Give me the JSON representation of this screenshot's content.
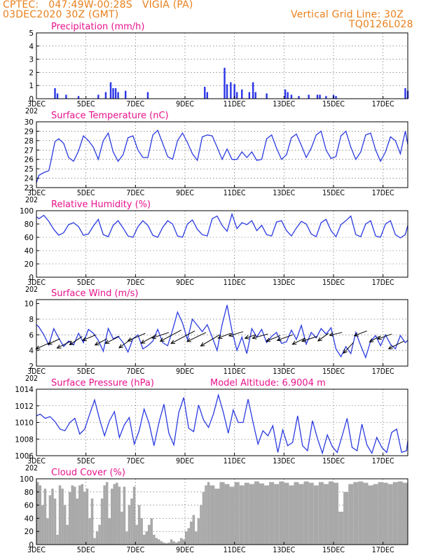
{
  "header": {
    "line1": "CPTEC:   047:49W-00:28S   VIGIA (PA)",
    "line2": "03DEC2020 30Z (GMT)",
    "right1": "Vertical Grid Line: 30Z",
    "right2": "TQ0126L028"
  },
  "x_ticks": [
    "3DEC",
    "5DEC",
    "7DEC",
    "9DEC",
    "11DEC",
    "13DEC",
    "15DEC",
    "17DEC"
  ],
  "x_tick_days": [
    3,
    5,
    7,
    9,
    11,
    13,
    15,
    17
  ],
  "year_label": "202",
  "colors": {
    "line": "#2b3be0",
    "bar": "#2a35e6",
    "cloud": "#a9a9a9",
    "title": "#e8128c",
    "header": "#e8801c"
  },
  "chart_data": [
    {
      "id": "precip",
      "type": "bar",
      "title": "Precipitation (mm/h)",
      "ylim": [
        0,
        5
      ],
      "yticks": [
        0,
        1,
        2,
        3,
        4,
        5
      ],
      "x": [
        3.75,
        3.85,
        4.2,
        4.7,
        5.5,
        5.8,
        6.0,
        6.1,
        6.2,
        6.3,
        6.6,
        7.5,
        9.8,
        9.9,
        10.6,
        10.7,
        10.85,
        11.0,
        11.1,
        11.3,
        11.6,
        11.75,
        11.85,
        12.3,
        13.05,
        13.15,
        13.3,
        13.6,
        14.0,
        14.35,
        14.45,
        14.7,
        15.0,
        15.1,
        17.9,
        18.0
      ],
      "values": [
        0.8,
        0.4,
        0.3,
        0.2,
        0.3,
        0.5,
        1.25,
        0.8,
        0.8,
        0.5,
        0.6,
        0.5,
        0.9,
        0.5,
        2.35,
        1.1,
        1.25,
        1.1,
        0.5,
        0.7,
        0.5,
        1.25,
        0.5,
        0.4,
        0.7,
        0.5,
        0.3,
        0.2,
        0.3,
        0.3,
        0.3,
        0.2,
        0.3,
        0.2,
        0.8,
        0.6
      ]
    },
    {
      "id": "temp",
      "type": "line",
      "title": "Surface Temperature (nC)",
      "ylim": [
        23,
        30
      ],
      "yticks": [
        23,
        24,
        25,
        26,
        27,
        28,
        29,
        30
      ],
      "x": [
        3.0,
        3.1,
        3.3,
        3.5,
        3.6,
        3.75,
        3.9,
        4.1,
        4.3,
        4.5,
        4.7,
        4.9,
        5.1,
        5.3,
        5.5,
        5.7,
        5.9,
        6.1,
        6.3,
        6.5,
        6.7,
        6.9,
        7.1,
        7.3,
        7.5,
        7.7,
        7.9,
        8.1,
        8.3,
        8.5,
        8.7,
        8.9,
        9.1,
        9.3,
        9.5,
        9.7,
        9.9,
        10.1,
        10.3,
        10.5,
        10.7,
        10.9,
        11.1,
        11.3,
        11.5,
        11.7,
        11.9,
        12.1,
        12.3,
        12.5,
        12.7,
        12.9,
        13.1,
        13.3,
        13.5,
        13.7,
        13.9,
        14.1,
        14.3,
        14.5,
        14.7,
        14.9,
        15.1,
        15.3,
        15.5,
        15.7,
        15.9,
        16.1,
        16.3,
        16.5,
        16.7,
        16.9,
        17.1,
        17.3,
        17.5,
        17.7,
        17.9,
        18.0
      ],
      "values": [
        23.5,
        24.3,
        24.6,
        24.8,
        26.0,
        27.9,
        28.2,
        27.7,
        26.2,
        25.8,
        26.9,
        28.5,
        28.0,
        27.3,
        26.0,
        28.0,
        28.8,
        26.8,
        25.8,
        26.5,
        28.3,
        28.5,
        27.0,
        26.2,
        26.2,
        28.6,
        29.1,
        27.7,
        26.3,
        26.0,
        28.0,
        28.8,
        27.8,
        26.6,
        25.9,
        28.4,
        28.6,
        28.5,
        27.3,
        26.0,
        27.1,
        26.0,
        26.0,
        26.8,
        26.2,
        26.8,
        25.9,
        26.0,
        28.2,
        28.6,
        27.2,
        26.0,
        26.5,
        28.3,
        28.7,
        27.5,
        26.2,
        27.2,
        28.6,
        29.0,
        27.0,
        26.1,
        26.3,
        28.5,
        29.0,
        27.3,
        26.0,
        26.8,
        28.6,
        28.8,
        27.0,
        25.8,
        26.8,
        28.4,
        28.0,
        26.6,
        29.0,
        27.6
      ]
    },
    {
      "id": "rh",
      "type": "line",
      "title": "Relative Humidity (%)",
      "ylim": [
        0,
        100
      ],
      "yticks": [
        0,
        20,
        40,
        60,
        80,
        100
      ],
      "x": [
        3.0,
        3.1,
        3.3,
        3.5,
        3.7,
        3.9,
        4.1,
        4.3,
        4.5,
        4.7,
        4.9,
        5.1,
        5.3,
        5.5,
        5.7,
        5.9,
        6.1,
        6.3,
        6.5,
        6.7,
        6.9,
        7.1,
        7.3,
        7.5,
        7.7,
        7.9,
        8.1,
        8.3,
        8.5,
        8.7,
        8.9,
        9.1,
        9.3,
        9.5,
        9.7,
        9.9,
        10.1,
        10.3,
        10.5,
        10.7,
        10.9,
        11.1,
        11.3,
        11.5,
        11.7,
        11.9,
        12.1,
        12.3,
        12.5,
        12.7,
        12.9,
        13.1,
        13.3,
        13.5,
        13.7,
        13.9,
        14.1,
        14.3,
        14.5,
        14.7,
        14.9,
        15.1,
        15.3,
        15.5,
        15.7,
        15.9,
        16.1,
        16.3,
        16.5,
        16.7,
        16.9,
        17.1,
        17.3,
        17.5,
        17.7,
        17.9,
        18.0
      ],
      "values": [
        91,
        88,
        93,
        84,
        72,
        63,
        67,
        79,
        82,
        76,
        63,
        65,
        77,
        87,
        64,
        61,
        78,
        85,
        74,
        62,
        60,
        76,
        85,
        78,
        63,
        60,
        75,
        85,
        80,
        62,
        60,
        80,
        86,
        72,
        64,
        62,
        88,
        92,
        78,
        69,
        95,
        73,
        82,
        79,
        85,
        70,
        78,
        64,
        62,
        83,
        85,
        70,
        62,
        74,
        84,
        80,
        65,
        61,
        82,
        87,
        70,
        61,
        79,
        85,
        92,
        64,
        61,
        80,
        85,
        62,
        60,
        80,
        85,
        64,
        59,
        64,
        78
      ]
    },
    {
      "id": "wind",
      "type": "line",
      "title": "Surface Wind (m/s)",
      "ylim": [
        2,
        10.5
      ],
      "yticks": [
        2,
        4,
        6,
        8,
        10
      ],
      "x": [
        3.0,
        3.1,
        3.3,
        3.5,
        3.7,
        3.9,
        4.1,
        4.3,
        4.5,
        4.7,
        4.9,
        5.1,
        5.3,
        5.5,
        5.7,
        5.9,
        6.1,
        6.3,
        6.5,
        6.7,
        6.9,
        7.1,
        7.3,
        7.5,
        7.7,
        7.9,
        8.1,
        8.3,
        8.5,
        8.7,
        8.9,
        9.1,
        9.3,
        9.5,
        9.7,
        9.9,
        10.1,
        10.3,
        10.5,
        10.7,
        10.9,
        11.1,
        11.3,
        11.5,
        11.7,
        11.9,
        12.1,
        12.3,
        12.5,
        12.7,
        12.9,
        13.1,
        13.3,
        13.5,
        13.7,
        13.9,
        14.1,
        14.3,
        14.5,
        14.7,
        14.9,
        15.1,
        15.3,
        15.5,
        15.7,
        15.9,
        16.1,
        16.3,
        16.5,
        16.7,
        16.9,
        17.1,
        17.3,
        17.5,
        17.7,
        17.9,
        18.0
      ],
      "values": [
        7.3,
        7.0,
        6.0,
        4.7,
        6.8,
        5.6,
        4.5,
        5.2,
        4.7,
        6.2,
        5.0,
        6.7,
        6.2,
        5.3,
        3.9,
        6.8,
        5.5,
        5.8,
        5.0,
        3.8,
        5.5,
        6.0,
        4.2,
        4.6,
        5.2,
        6.7,
        5.0,
        4.6,
        6.6,
        8.9,
        7.5,
        5.4,
        8.0,
        7.2,
        6.4,
        7.3,
        5.7,
        4.0,
        7.3,
        9.8,
        6.5,
        4.0,
        5.7,
        3.6,
        6.8,
        5.7,
        6.7,
        5.0,
        5.8,
        6.3,
        4.9,
        5.1,
        6.6,
        5.4,
        7.2,
        4.8,
        6.3,
        5.6,
        6.8,
        6.1,
        6.9,
        4.2,
        3.2,
        4.5,
        3.6,
        6.3,
        4.6,
        3.1,
        5.2,
        5.9,
        4.6,
        6.0,
        4.8,
        4.2,
        5.9,
        5.0,
        5.3
      ],
      "arrows": {
        "x": [
          3.55,
          3.95,
          4.4,
          4.85,
          5.4,
          5.85,
          6.35,
          6.85,
          7.4,
          7.85,
          8.35,
          8.85,
          9.4,
          9.85,
          10.4,
          10.85,
          11.35,
          11.85,
          12.35,
          12.85,
          13.35,
          13.85,
          14.35,
          14.8,
          15.35,
          15.8,
          16.35,
          16.85,
          17.35,
          17.85
        ],
        "speed": [
          5.0,
          5.5,
          5.2,
          5.8,
          6.0,
          5.5,
          5.8,
          5.5,
          6.2,
          6.0,
          6.3,
          6.6,
          6.5,
          6.3,
          6.0,
          6.2,
          6.4,
          6.0,
          6.1,
          5.9,
          6.0,
          5.6,
          5.8,
          6.2,
          6.3,
          5.0,
          6.5,
          5.8,
          6.1,
          5.2
        ],
        "dx": [
          20,
          17,
          20,
          18,
          19,
          17,
          20,
          18,
          25,
          22,
          24,
          30,
          34,
          27,
          27,
          18,
          20,
          15,
          22,
          20,
          22,
          18,
          22,
          15,
          18,
          14,
          18,
          14,
          20,
          22
        ],
        "dy": [
          9,
          8,
          10,
          12,
          8,
          9,
          10,
          13,
          11,
          12,
          8,
          16,
          18,
          13,
          16,
          7,
          6,
          5,
          6,
          8,
          8,
          9,
          7,
          11,
          4,
          15,
          7,
          8,
          7,
          11
        ]
      }
    },
    {
      "id": "pres",
      "type": "line",
      "title": "Surface Pressure (hPa)",
      "annotation": "Model Altitude: 6.9004 m",
      "ylim": [
        1006,
        1014
      ],
      "yticks": [
        1006,
        1008,
        1010,
        1012,
        1014
      ],
      "x": [
        3.0,
        3.15,
        3.35,
        3.55,
        3.75,
        3.95,
        4.15,
        4.35,
        4.55,
        4.75,
        4.95,
        5.15,
        5.35,
        5.55,
        5.75,
        5.95,
        6.15,
        6.35,
        6.55,
        6.75,
        6.95,
        7.15,
        7.35,
        7.55,
        7.75,
        7.95,
        8.15,
        8.35,
        8.55,
        8.75,
        8.95,
        9.15,
        9.35,
        9.55,
        9.75,
        9.95,
        10.15,
        10.35,
        10.55,
        10.75,
        10.95,
        11.15,
        11.35,
        11.55,
        11.75,
        11.95,
        12.15,
        12.35,
        12.55,
        12.75,
        12.95,
        13.15,
        13.35,
        13.55,
        13.75,
        13.95,
        14.15,
        14.35,
        14.55,
        14.75,
        14.95,
        15.15,
        15.35,
        15.55,
        15.75,
        15.95,
        16.15,
        16.35,
        16.55,
        16.75,
        16.95,
        17.15,
        17.35,
        17.55,
        17.75,
        17.95,
        18.0
      ],
      "values": [
        1010.8,
        1011.0,
        1010.5,
        1010.7,
        1010.1,
        1009.2,
        1009.0,
        1010.0,
        1010.5,
        1008.6,
        1009.2,
        1011.0,
        1012.7,
        1010.4,
        1008.4,
        1010.2,
        1011.3,
        1008.2,
        1009.7,
        1010.6,
        1007.4,
        1009.0,
        1011.6,
        1009.9,
        1007.2,
        1010.0,
        1012.2,
        1008.7,
        1007.3,
        1011.2,
        1013.0,
        1009.3,
        1008.9,
        1012.1,
        1010.3,
        1009.4,
        1011.0,
        1013.3,
        1011.2,
        1008.7,
        1011.5,
        1010.0,
        1010.0,
        1012.8,
        1010.0,
        1007.4,
        1009.0,
        1008.4,
        1009.6,
        1006.4,
        1009.1,
        1007.2,
        1007.6,
        1010.8,
        1007.2,
        1006.6,
        1010.2,
        1008.1,
        1006.3,
        1008.5,
        1007.1,
        1006.4,
        1008.4,
        1010.5,
        1007.0,
        1006.6,
        1009.8,
        1007.3,
        1006.3,
        1008.2,
        1007.0,
        1006.4,
        1008.8,
        1009.2,
        1006.4,
        1006.6,
        1007.8
      ]
    },
    {
      "id": "cloud",
      "type": "area",
      "title": "Cloud Cover (%)",
      "ylim": [
        0,
        100
      ],
      "yticks": [
        0,
        20,
        40,
        60,
        80,
        100
      ],
      "x": [
        3.0,
        3.1,
        3.2,
        3.3,
        3.4,
        3.5,
        3.6,
        3.7,
        3.8,
        3.9,
        4.0,
        4.1,
        4.2,
        4.3,
        4.4,
        4.5,
        4.6,
        4.7,
        4.8,
        4.9,
        5.0,
        5.1,
        5.2,
        5.3,
        5.4,
        5.5,
        5.6,
        5.7,
        5.8,
        5.9,
        6.0,
        6.1,
        6.2,
        6.3,
        6.4,
        6.5,
        6.6,
        6.7,
        6.8,
        6.9,
        7.0,
        7.1,
        7.2,
        7.3,
        7.4,
        7.5,
        7.6,
        7.7,
        7.8,
        7.9,
        8.0,
        8.1,
        8.2,
        8.3,
        8.4,
        8.5,
        8.6,
        8.7,
        8.8,
        8.9,
        9.0,
        9.1,
        9.2,
        9.3,
        9.4,
        9.5,
        9.6,
        9.7,
        9.8,
        9.9,
        10.0,
        10.2,
        10.4,
        10.6,
        10.8,
        11.0,
        11.2,
        11.4,
        11.6,
        11.8,
        12.0,
        12.2,
        12.4,
        12.6,
        12.8,
        13.0,
        13.2,
        13.4,
        13.6,
        13.8,
        14.0,
        14.2,
        14.4,
        14.6,
        14.8,
        15.0,
        15.2,
        15.4,
        15.6,
        15.8,
        16.0,
        16.2,
        16.4,
        16.6,
        16.8,
        17.0,
        17.2,
        17.4,
        17.6,
        17.8,
        18.0
      ],
      "values": [
        95,
        90,
        60,
        85,
        40,
        75,
        85,
        70,
        15,
        90,
        85,
        60,
        30,
        80,
        90,
        88,
        70,
        90,
        92,
        80,
        85,
        40,
        70,
        10,
        20,
        30,
        70,
        90,
        95,
        40,
        85,
        92,
        94,
        88,
        50,
        88,
        20,
        60,
        70,
        88,
        30,
        60,
        40,
        15,
        20,
        30,
        40,
        15,
        10,
        8,
        5,
        3,
        2,
        3,
        8,
        5,
        3,
        5,
        10,
        8,
        20,
        25,
        35,
        45,
        20,
        40,
        60,
        80,
        90,
        95,
        90,
        85,
        95,
        92,
        88,
        95,
        90,
        94,
        92,
        96,
        93,
        90,
        95,
        92,
        96,
        94,
        90,
        95,
        92,
        96,
        94,
        90,
        95,
        92,
        96,
        94,
        50,
        80,
        92,
        95,
        96,
        94,
        90,
        92,
        95,
        94,
        92,
        95,
        96,
        94,
        96
      ]
    }
  ]
}
